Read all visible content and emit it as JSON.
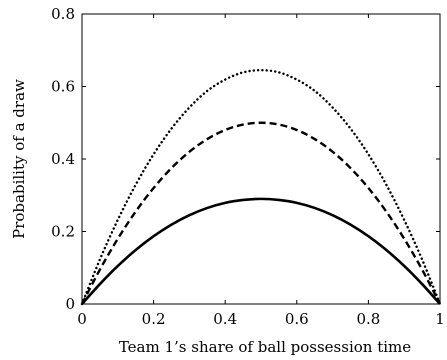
{
  "chart_data": {
    "type": "line",
    "title": "",
    "xlabel": "Team 1’s share of ball possession time",
    "ylabel": "Probability of a draw",
    "xlim": [
      0,
      1
    ],
    "ylim": [
      0,
      0.8
    ],
    "grid": false,
    "legend": "none",
    "x_ticks": [
      "0",
      "0.2",
      "0.4",
      "0.6",
      "0.8",
      "1"
    ],
    "y_ticks": [
      "0",
      "0.2",
      "0.4",
      "0.6",
      "0.8"
    ],
    "x": [
      0,
      0.05,
      0.1,
      0.15,
      0.2,
      0.25,
      0.3,
      0.35,
      0.4,
      0.45,
      0.5,
      0.55,
      0.6,
      0.65,
      0.7,
      0.75,
      0.8,
      0.85,
      0.9,
      0.95,
      1
    ],
    "series": [
      {
        "style": "solid",
        "color": "#000000",
        "values": [
          0,
          0.055,
          0.105,
          0.149,
          0.187,
          0.219,
          0.245,
          0.265,
          0.279,
          0.287,
          0.29,
          0.287,
          0.279,
          0.265,
          0.245,
          0.219,
          0.187,
          0.149,
          0.105,
          0.055,
          0
        ]
      },
      {
        "style": "dashed",
        "color": "#000000",
        "values": [
          0,
          0.095,
          0.18,
          0.255,
          0.32,
          0.375,
          0.42,
          0.455,
          0.48,
          0.495,
          0.5,
          0.495,
          0.48,
          0.455,
          0.42,
          0.375,
          0.32,
          0.255,
          0.18,
          0.095,
          0
        ]
      },
      {
        "style": "dotted",
        "color": "#000000",
        "values": [
          0,
          0.123,
          0.232,
          0.329,
          0.413,
          0.484,
          0.542,
          0.588,
          0.619,
          0.639,
          0.645,
          0.639,
          0.619,
          0.588,
          0.542,
          0.484,
          0.413,
          0.329,
          0.232,
          0.123,
          0
        ]
      }
    ]
  }
}
